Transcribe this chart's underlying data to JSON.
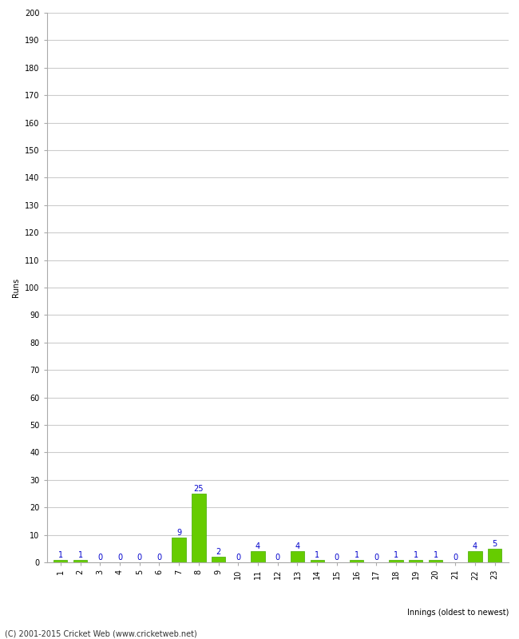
{
  "innings": [
    1,
    2,
    3,
    4,
    5,
    6,
    7,
    8,
    9,
    10,
    11,
    12,
    13,
    14,
    15,
    16,
    17,
    18,
    19,
    20,
    21,
    22,
    23
  ],
  "runs": [
    1,
    1,
    0,
    0,
    0,
    0,
    9,
    25,
    2,
    0,
    4,
    0,
    4,
    1,
    0,
    1,
    0,
    1,
    1,
    1,
    0,
    4,
    5
  ],
  "bar_color": "#66cc00",
  "bar_edge_color": "#44aa00",
  "label_color": "#0000cc",
  "ylabel": "Runs",
  "xlabel": "Innings (oldest to newest)",
  "ylim": [
    0,
    200
  ],
  "yticks": [
    0,
    10,
    20,
    30,
    40,
    50,
    60,
    70,
    80,
    90,
    100,
    110,
    120,
    130,
    140,
    150,
    160,
    170,
    180,
    190,
    200
  ],
  "footer": "(C) 2001-2015 Cricket Web (www.cricketweb.net)",
  "bg_color": "#ffffff",
  "grid_color": "#cccccc",
  "label_fontsize": 7,
  "tick_fontsize": 7,
  "footer_fontsize": 7,
  "value_label_fontsize": 7
}
